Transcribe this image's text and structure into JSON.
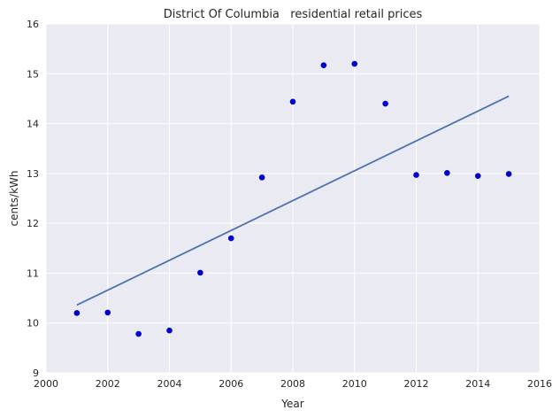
{
  "chart_data": {
    "type": "scatter",
    "title": "District Of Columbia   residential retail prices",
    "xlabel": "Year",
    "ylabel": "cents/kWh",
    "xlim": [
      2000,
      2016
    ],
    "ylim": [
      9,
      16
    ],
    "xticks": [
      2000,
      2002,
      2004,
      2006,
      2008,
      2010,
      2012,
      2014,
      2016
    ],
    "yticks": [
      9,
      10,
      11,
      12,
      13,
      14,
      15,
      16
    ],
    "grid": true,
    "points": [
      {
        "x": 2001,
        "y": 10.2
      },
      {
        "x": 2002,
        "y": 10.21
      },
      {
        "x": 2003,
        "y": 9.78
      },
      {
        "x": 2004,
        "y": 9.85
      },
      {
        "x": 2005,
        "y": 11.01
      },
      {
        "x": 2006,
        "y": 11.7
      },
      {
        "x": 2007,
        "y": 12.92
      },
      {
        "x": 2008,
        "y": 14.44
      },
      {
        "x": 2009,
        "y": 15.17
      },
      {
        "x": 2010,
        "y": 15.2
      },
      {
        "x": 2011,
        "y": 14.4
      },
      {
        "x": 2012,
        "y": 12.97
      },
      {
        "x": 2013,
        "y": 13.01
      },
      {
        "x": 2014,
        "y": 12.95
      },
      {
        "x": 2015,
        "y": 12.99
      }
    ],
    "trend_line": {
      "x": [
        2001,
        2015
      ],
      "y": [
        10.36,
        14.55
      ]
    },
    "colors": {
      "background": "#eaeaf2",
      "grid": "#ffffff",
      "point": "#0000cc",
      "line": "#4c72b0"
    }
  }
}
